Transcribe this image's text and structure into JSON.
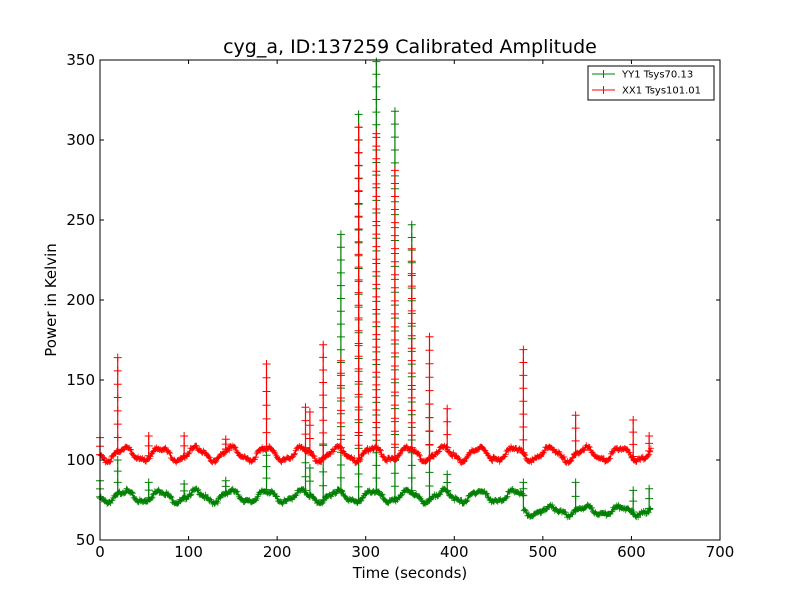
{
  "chart_data": {
    "type": "line",
    "title": "cyg_a, ID:137259 Calibrated Amplitude",
    "xlabel": "Time (seconds)",
    "ylabel": "Power in Kelvin",
    "xlim": [
      0,
      700
    ],
    "ylim": [
      50,
      350
    ],
    "xticks": [
      0,
      100,
      200,
      300,
      400,
      500,
      600,
      700
    ],
    "yticks": [
      50,
      100,
      150,
      200,
      250,
      300,
      350
    ],
    "grid": false,
    "legend_position": "top-right",
    "marker": "plus",
    "series": [
      {
        "name": "YY1 Tsys70.13",
        "color": "#008000",
        "baseline": {
          "segments": [
            {
              "x_start": 0,
              "x_end": 478,
              "mean": 78,
              "amplitude": 3.5,
              "period": 40,
              "phase": 18
            },
            {
              "x_start": 478,
              "x_end": 622,
              "mean": 69,
              "amplitude": 2.5,
              "period": 40,
              "phase": 18
            }
          ]
        },
        "spikes": [
          {
            "x": 0,
            "y": 87
          },
          {
            "x": 20,
            "y": 100
          },
          {
            "x": 55,
            "y": 86
          },
          {
            "x": 95,
            "y": 85
          },
          {
            "x": 142,
            "y": 87
          },
          {
            "x": 188,
            "y": 103
          },
          {
            "x": 232,
            "y": 107
          },
          {
            "x": 237,
            "y": 95
          },
          {
            "x": 252,
            "y": 110
          },
          {
            "x": 272,
            "y": 241
          },
          {
            "x": 292,
            "y": 316
          },
          {
            "x": 312,
            "y": 349
          },
          {
            "x": 333,
            "y": 318
          },
          {
            "x": 352,
            "y": 247
          },
          {
            "x": 372,
            "y": 135
          },
          {
            "x": 392,
            "y": 91
          },
          {
            "x": 478,
            "y": 86
          },
          {
            "x": 537,
            "y": 86
          },
          {
            "x": 602,
            "y": 81
          },
          {
            "x": 620,
            "y": 82
          }
        ]
      },
      {
        "name": "XX1 Tsys101.01",
        "color": "#ff0000",
        "baseline": {
          "segments": [
            {
              "x_start": 0,
              "x_end": 622,
              "mean": 104.5,
              "amplitude": 4,
              "period": 40,
              "phase": 18
            }
          ]
        },
        "spikes": [
          {
            "x": 0,
            "y": 114
          },
          {
            "x": 20,
            "y": 164
          },
          {
            "x": 55,
            "y": 115
          },
          {
            "x": 95,
            "y": 115
          },
          {
            "x": 142,
            "y": 113
          },
          {
            "x": 188,
            "y": 160
          },
          {
            "x": 232,
            "y": 133
          },
          {
            "x": 237,
            "y": 130
          },
          {
            "x": 252,
            "y": 172
          },
          {
            "x": 272,
            "y": 162
          },
          {
            "x": 292,
            "y": 308
          },
          {
            "x": 312,
            "y": 304
          },
          {
            "x": 333,
            "y": 281
          },
          {
            "x": 352,
            "y": 232
          },
          {
            "x": 372,
            "y": 177
          },
          {
            "x": 392,
            "y": 132
          },
          {
            "x": 478,
            "y": 169
          },
          {
            "x": 537,
            "y": 128
          },
          {
            "x": 602,
            "y": 125
          },
          {
            "x": 620,
            "y": 115
          }
        ]
      }
    ]
  }
}
